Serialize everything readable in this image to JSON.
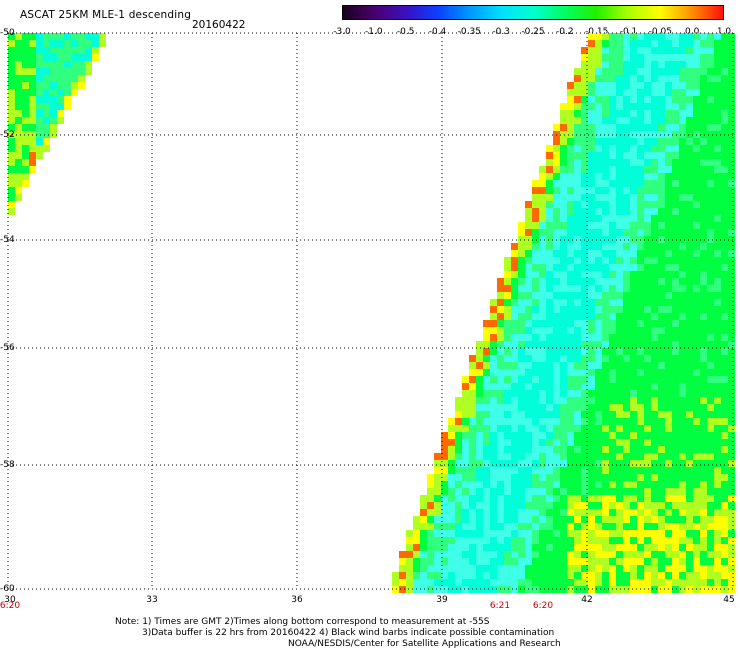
{
  "header": {
    "title": "ASCAT 25KM MLE-1 descending",
    "date": "20160422"
  },
  "colorbar": {
    "tick_labels": [
      "-3.0",
      "-1.0",
      "-0.5",
      "-0.4",
      "-0.35",
      "-0.3",
      "-0.25",
      "-0.2",
      "-0.15",
      "-0.1",
      "-0.05",
      "0.0",
      "1.0"
    ],
    "colors": [
      "#1a0020",
      "#4a0070",
      "#3a10c0",
      "#0a40ff",
      "#0098ff",
      "#00e0ff",
      "#00ffd0",
      "#00ff60",
      "#20f000",
      "#a8ff00",
      "#ffff00",
      "#ff9000",
      "#ff1010"
    ]
  },
  "map": {
    "lat_labels": [
      "-50",
      "-52",
      "-54",
      "-56",
      "-58",
      "-60"
    ],
    "lon_labels": [
      "30",
      "33",
      "36",
      "39",
      "42",
      "45"
    ],
    "time_labels": [
      "6:20",
      "6:21",
      "6:20"
    ],
    "lat_range": [
      -60,
      -50
    ],
    "lon_range": [
      30,
      45
    ],
    "grid": true,
    "grid_color": "#000000",
    "measurement_colors": {
      "cyan": "#00ffd8",
      "cyan_light": "#40ffe8",
      "green": "#00ff40",
      "green_light": "#30ff80",
      "yellow_green": "#b0ff20",
      "yellow": "#ffff00",
      "orange": "#ff9a00",
      "deep_orange": "#ff6a00"
    }
  },
  "footer": {
    "line1": "Note: 1) Times are GMT 2)Times along bottom correspond to measurement at -55S",
    "line2": "3)Data buffer is 22 hrs from 20160422 4) Black wind barbs indicate possible contamination",
    "line3": "NOAA/NESDIS/Center for Satellite Applications and Research"
  }
}
